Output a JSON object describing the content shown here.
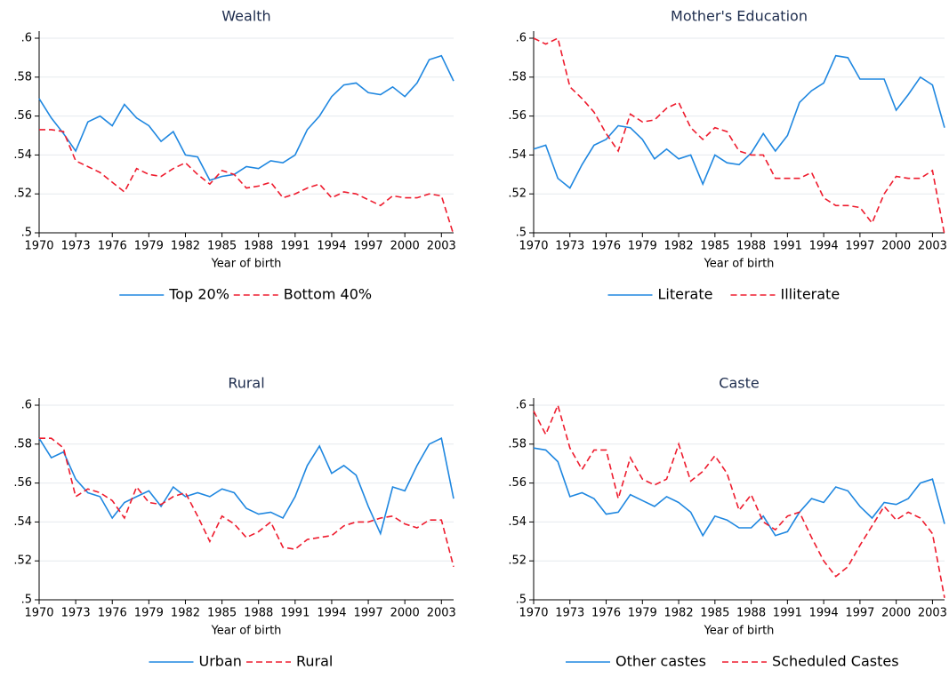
{
  "chart_data": [
    {
      "type": "line",
      "title": "Wealth",
      "x_label": "Year of birth",
      "grid": true,
      "x": [
        1970,
        1971,
        1972,
        1973,
        1974,
        1975,
        1976,
        1977,
        1978,
        1979,
        1980,
        1981,
        1982,
        1983,
        1984,
        1985,
        1986,
        1987,
        1988,
        1989,
        1990,
        1991,
        1992,
        1993,
        1994,
        1995,
        1996,
        1997,
        1998,
        1999,
        2000,
        2001,
        2002,
        2003,
        2004
      ],
      "xlim": [
        1970,
        2004
      ],
      "xticks": [
        1970,
        1973,
        1976,
        1979,
        1982,
        1985,
        1988,
        1991,
        1994,
        1997,
        2000,
        2003
      ],
      "ylim": [
        0.5,
        0.6
      ],
      "yticks": [
        {
          "value": 0.5,
          "label": ".5"
        },
        {
          "value": 0.52,
          "label": ".52"
        },
        {
          "value": 0.54,
          "label": ".54"
        },
        {
          "value": 0.56,
          "label": ".56"
        },
        {
          "value": 0.58,
          "label": ".58"
        },
        {
          "value": 0.6,
          "label": ".6"
        }
      ],
      "series": [
        {
          "name": "Top 20%",
          "color": "#1f87e0",
          "line_style": "solid",
          "values": [
            0.569,
            0.559,
            0.551,
            0.542,
            0.557,
            0.56,
            0.555,
            0.566,
            0.559,
            0.555,
            0.547,
            0.552,
            0.54,
            0.539,
            0.527,
            0.529,
            0.53,
            0.534,
            0.533,
            0.537,
            0.536,
            0.54,
            0.553,
            0.56,
            0.57,
            0.576,
            0.577,
            0.572,
            0.571,
            0.575,
            0.57,
            0.577,
            0.589,
            0.591,
            0.578
          ]
        },
        {
          "name": "Bottom 40%",
          "color": "#ee1c2e",
          "line_style": "dashed",
          "values": [
            0.553,
            0.553,
            0.552,
            0.537,
            0.534,
            0.531,
            0.526,
            0.521,
            0.533,
            0.53,
            0.529,
            0.533,
            0.536,
            0.53,
            0.525,
            0.532,
            0.53,
            0.523,
            0.524,
            0.526,
            0.518,
            0.52,
            0.523,
            0.525,
            0.518,
            0.521,
            0.52,
            0.517,
            0.514,
            0.519,
            0.518,
            0.518,
            0.52,
            0.519,
            0.499
          ]
        }
      ]
    },
    {
      "type": "line",
      "title": "Mother's Education",
      "x_label": "Year of birth",
      "grid": true,
      "x": [
        1970,
        1971,
        1972,
        1973,
        1974,
        1975,
        1976,
        1977,
        1978,
        1979,
        1980,
        1981,
        1982,
        1983,
        1984,
        1985,
        1986,
        1987,
        1988,
        1989,
        1990,
        1991,
        1992,
        1993,
        1994,
        1995,
        1996,
        1997,
        1998,
        1999,
        2000,
        2001,
        2002,
        2003,
        2004
      ],
      "xlim": [
        1970,
        2004
      ],
      "xticks": [
        1970,
        1973,
        1976,
        1979,
        1982,
        1985,
        1988,
        1991,
        1994,
        1997,
        2000,
        2003
      ],
      "ylim": [
        0.5,
        0.6
      ],
      "yticks": [
        {
          "value": 0.5,
          "label": ".5"
        },
        {
          "value": 0.52,
          "label": ".52"
        },
        {
          "value": 0.54,
          "label": ".54"
        },
        {
          "value": 0.56,
          "label": ".56"
        },
        {
          "value": 0.58,
          "label": ".58"
        },
        {
          "value": 0.6,
          "label": ".6"
        }
      ],
      "series": [
        {
          "name": "Literate",
          "color": "#1f87e0",
          "line_style": "solid",
          "values": [
            0.543,
            0.545,
            0.528,
            0.523,
            0.535,
            0.545,
            0.548,
            0.555,
            0.554,
            0.548,
            0.538,
            0.543,
            0.538,
            0.54,
            0.525,
            0.54,
            0.536,
            0.535,
            0.541,
            0.551,
            0.542,
            0.55,
            0.567,
            0.573,
            0.577,
            0.591,
            0.59,
            0.579,
            0.579,
            0.579,
            0.563,
            0.571,
            0.58,
            0.576,
            0.554
          ]
        },
        {
          "name": "Illiterate",
          "color": "#ee1c2e",
          "line_style": "dashed",
          "values": [
            0.6,
            0.597,
            0.6,
            0.575,
            0.569,
            0.562,
            0.551,
            0.542,
            0.561,
            0.557,
            0.558,
            0.564,
            0.567,
            0.554,
            0.548,
            0.554,
            0.552,
            0.542,
            0.54,
            0.54,
            0.528,
            0.528,
            0.528,
            0.531,
            0.518,
            0.514,
            0.514,
            0.513,
            0.505,
            0.52,
            0.529,
            0.528,
            0.528,
            0.532,
            0.499
          ]
        }
      ]
    },
    {
      "type": "line",
      "title": "Rural",
      "x_label": "Year of birth",
      "grid": true,
      "x": [
        1970,
        1971,
        1972,
        1973,
        1974,
        1975,
        1976,
        1977,
        1978,
        1979,
        1980,
        1981,
        1982,
        1983,
        1984,
        1985,
        1986,
        1987,
        1988,
        1989,
        1990,
        1991,
        1992,
        1993,
        1994,
        1995,
        1996,
        1997,
        1998,
        1999,
        2000,
        2001,
        2002,
        2003,
        2004
      ],
      "xlim": [
        1970,
        2004
      ],
      "xticks": [
        1970,
        1973,
        1976,
        1979,
        1982,
        1985,
        1988,
        1991,
        1994,
        1997,
        2000,
        2003
      ],
      "ylim": [
        0.5,
        0.6
      ],
      "yticks": [
        {
          "value": 0.5,
          "label": ".5"
        },
        {
          "value": 0.52,
          "label": ".52"
        },
        {
          "value": 0.54,
          "label": ".54"
        },
        {
          "value": 0.56,
          "label": ".56"
        },
        {
          "value": 0.58,
          "label": ".58"
        },
        {
          "value": 0.6,
          "label": ".6"
        }
      ],
      "series": [
        {
          "name": "Urban",
          "color": "#1f87e0",
          "line_style": "solid",
          "values": [
            0.583,
            0.573,
            0.576,
            0.562,
            0.555,
            0.553,
            0.542,
            0.55,
            0.553,
            0.556,
            0.548,
            0.558,
            0.553,
            0.555,
            0.553,
            0.557,
            0.555,
            0.547,
            0.544,
            0.545,
            0.542,
            0.553,
            0.569,
            0.579,
            0.565,
            0.569,
            0.564,
            0.548,
            0.534,
            0.558,
            0.556,
            0.569,
            0.58,
            0.583,
            0.552
          ]
        },
        {
          "name": "Rural",
          "color": "#ee1c2e",
          "line_style": "dashed",
          "values": [
            0.583,
            0.583,
            0.578,
            0.553,
            0.557,
            0.555,
            0.551,
            0.542,
            0.558,
            0.55,
            0.549,
            0.553,
            0.555,
            0.543,
            0.53,
            0.543,
            0.539,
            0.532,
            0.535,
            0.54,
            0.527,
            0.526,
            0.531,
            0.532,
            0.533,
            0.538,
            0.54,
            0.54,
            0.542,
            0.543,
            0.539,
            0.537,
            0.541,
            0.541,
            0.517
          ]
        }
      ]
    },
    {
      "type": "line",
      "title": "Caste",
      "x_label": "Year of birth",
      "grid": true,
      "x": [
        1970,
        1971,
        1972,
        1973,
        1974,
        1975,
        1976,
        1977,
        1978,
        1979,
        1980,
        1981,
        1982,
        1983,
        1984,
        1985,
        1986,
        1987,
        1988,
        1989,
        1990,
        1991,
        1992,
        1993,
        1994,
        1995,
        1996,
        1997,
        1998,
        1999,
        2000,
        2001,
        2002,
        2003,
        2004
      ],
      "xlim": [
        1970,
        2004
      ],
      "xticks": [
        1970,
        1973,
        1976,
        1979,
        1982,
        1985,
        1988,
        1991,
        1994,
        1997,
        2000,
        2003
      ],
      "ylim": [
        0.5,
        0.6
      ],
      "yticks": [
        {
          "value": 0.5,
          "label": ".5"
        },
        {
          "value": 0.52,
          "label": ".52"
        },
        {
          "value": 0.54,
          "label": ".54"
        },
        {
          "value": 0.56,
          "label": ".56"
        },
        {
          "value": 0.58,
          "label": ".58"
        },
        {
          "value": 0.6,
          "label": ".6"
        }
      ],
      "series": [
        {
          "name": "Other castes",
          "color": "#1f87e0",
          "line_style": "solid",
          "values": [
            0.578,
            0.577,
            0.571,
            0.553,
            0.555,
            0.552,
            0.544,
            0.545,
            0.554,
            0.551,
            0.548,
            0.553,
            0.55,
            0.545,
            0.533,
            0.543,
            0.541,
            0.537,
            0.537,
            0.543,
            0.533,
            0.535,
            0.545,
            0.552,
            0.55,
            0.558,
            0.556,
            0.548,
            0.542,
            0.55,
            0.549,
            0.552,
            0.56,
            0.562,
            0.539
          ]
        },
        {
          "name": "Scheduled Castes",
          "color": "#ee1c2e",
          "line_style": "dashed",
          "values": [
            0.597,
            0.585,
            0.6,
            0.578,
            0.567,
            0.577,
            0.577,
            0.552,
            0.573,
            0.562,
            0.559,
            0.562,
            0.58,
            0.561,
            0.566,
            0.574,
            0.565,
            0.546,
            0.554,
            0.54,
            0.536,
            0.543,
            0.545,
            0.532,
            0.52,
            0.512,
            0.517,
            0.528,
            0.538,
            0.548,
            0.541,
            0.545,
            0.542,
            0.534,
            0.501
          ]
        }
      ]
    }
  ]
}
